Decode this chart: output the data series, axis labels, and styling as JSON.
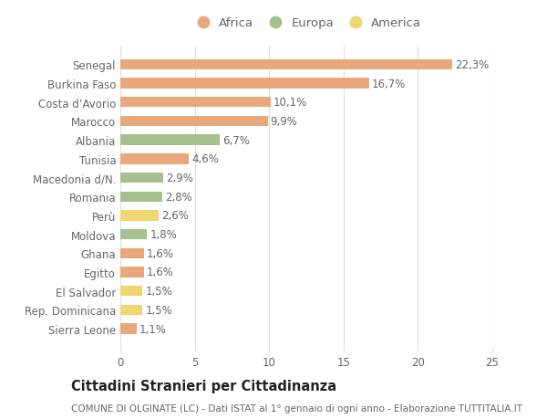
{
  "categories": [
    "Sierra Leone",
    "Rep. Dominicana",
    "El Salvador",
    "Egitto",
    "Ghana",
    "Moldova",
    "Perù",
    "Romania",
    "Macedonia d/N.",
    "Tunisia",
    "Albania",
    "Marocco",
    "Costa d’Avorio",
    "Burkina Faso",
    "Senegal"
  ],
  "values": [
    1.1,
    1.5,
    1.5,
    1.6,
    1.6,
    1.8,
    2.6,
    2.8,
    2.9,
    4.6,
    6.7,
    9.9,
    10.1,
    16.7,
    22.3
  ],
  "colors": [
    "#e8a87c",
    "#f0d570",
    "#f0d570",
    "#e8a87c",
    "#e8a87c",
    "#a8c090",
    "#f0d570",
    "#a8c090",
    "#a8c090",
    "#e8a87c",
    "#a8c090",
    "#e8a87c",
    "#e8a87c",
    "#e8a87c",
    "#e8a87c"
  ],
  "labels": [
    "1,1%",
    "1,5%",
    "1,5%",
    "1,6%",
    "1,6%",
    "1,8%",
    "2,6%",
    "2,8%",
    "2,9%",
    "4,6%",
    "6,7%",
    "9,9%",
    "10,1%",
    "16,7%",
    "22,3%"
  ],
  "legend_labels": [
    "Africa",
    "Europa",
    "America"
  ],
  "legend_colors": [
    "#e8a87c",
    "#a8c090",
    "#f0d570"
  ],
  "title": "Cittadini Stranieri per Cittadinanza",
  "subtitle": "COMUNE DI OLGINATE (LC) - Dati ISTAT al 1° gennaio di ogni anno - Elaborazione TUTTITALIA.IT",
  "xlim": [
    0,
    25
  ],
  "xticks": [
    0,
    5,
    10,
    15,
    20,
    25
  ],
  "bar_height": 0.55,
  "background_color": "#ffffff",
  "grid_color": "#dddddd",
  "text_color": "#666666",
  "label_fontsize": 8.5,
  "tick_fontsize": 8.5,
  "title_fontsize": 10.5,
  "subtitle_fontsize": 7.5
}
